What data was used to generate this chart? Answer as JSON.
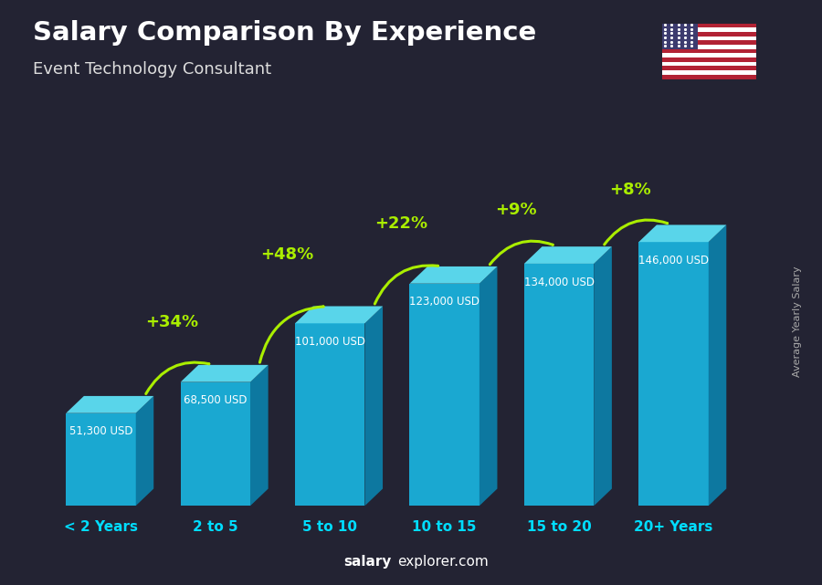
{
  "title": "Salary Comparison By Experience",
  "subtitle": "Event Technology Consultant",
  "categories": [
    "< 2 Years",
    "2 to 5",
    "5 to 10",
    "10 to 15",
    "15 to 20",
    "20+ Years"
  ],
  "values": [
    51300,
    68500,
    101000,
    123000,
    134000,
    146000
  ],
  "salary_labels": [
    "51,300 USD",
    "68,500 USD",
    "101,000 USD",
    "123,000 USD",
    "134,000 USD",
    "146,000 USD"
  ],
  "pct_changes": [
    "+34%",
    "+48%",
    "+22%",
    "+9%",
    "+8%"
  ],
  "front_color": "#1ab4e0",
  "top_color": "#5de0f5",
  "side_color": "#0a85b0",
  "title_color": "#ffffff",
  "subtitle_color": "#dddddd",
  "salary_color": "#ffffff",
  "pct_color": "#aaee00",
  "xlabel_color": "#00ddff",
  "bg_color": "#2b2b3b",
  "source_label": "Average Yearly Salary",
  "watermark_salary": "salary",
  "watermark_rest": "explorer.com",
  "figsize": [
    9.0,
    6.41
  ],
  "dpi": 100
}
